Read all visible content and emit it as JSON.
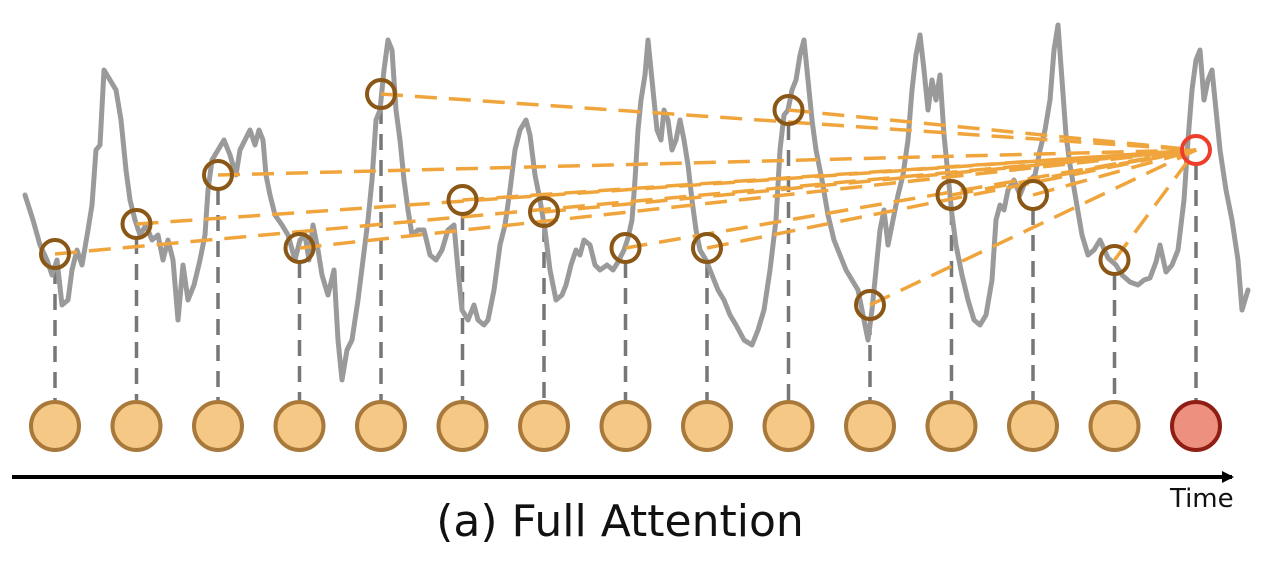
{
  "caption": "(a) Full Attention",
  "axis_label": "Time",
  "colors": {
    "signal": "#9a9a9a",
    "attention_line": "#f0a53c",
    "key_marker": "#8a5716",
    "query_marker": "#ee3e2a",
    "token_fill": "#f6c885",
    "token_stroke": "#a8793a",
    "query_token_fill": "#ee9080",
    "query_token_stroke": "#8f1e14",
    "connector": "#777777",
    "axis": "#000000"
  },
  "token_count": 15,
  "query_token_index": 14
}
